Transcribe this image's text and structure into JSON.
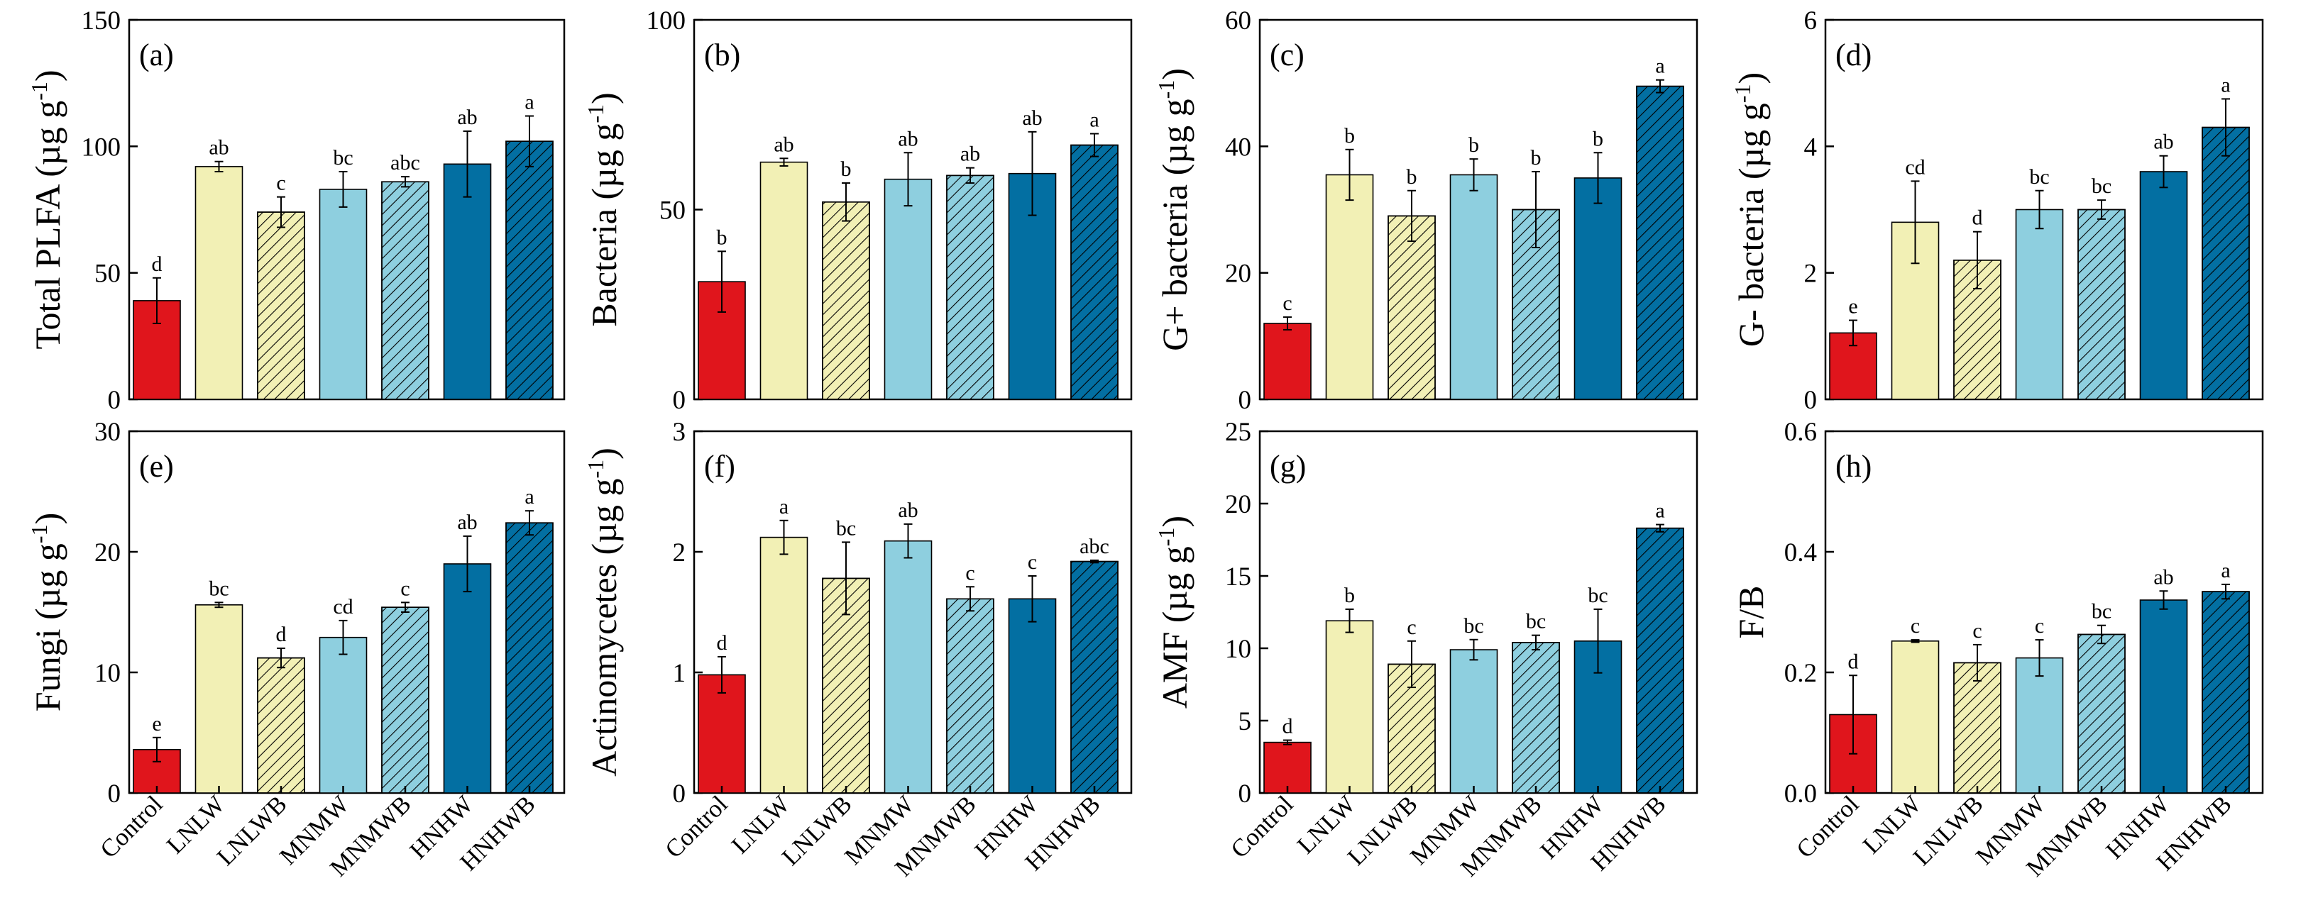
{
  "categories": [
    "Control",
    "LNLW",
    "LNLWB",
    "MNMW",
    "MNMWB",
    "HNHW",
    "HNHWB"
  ],
  "bar_colors": [
    "#e0151c",
    "#f2f0b5",
    "#f2f0b5",
    "#8ecfdf",
    "#8ecfdf",
    "#036fa2",
    "#036fa2"
  ],
  "hatched": [
    false,
    false,
    true,
    false,
    true,
    false,
    true
  ],
  "chart_data": [
    {
      "type": "bar",
      "panel": "(a)",
      "ylabel": "Total PLFA (µg g",
      "ylim": [
        0,
        150
      ],
      "yticks": [
        0,
        50,
        100,
        150
      ],
      "values": [
        39,
        92,
        74,
        83,
        86,
        93,
        102
      ],
      "errors": [
        9,
        2,
        6,
        7,
        2,
        13,
        10
      ],
      "letters": [
        "d",
        "ab",
        "c",
        "bc",
        "abc",
        "ab",
        "a"
      ]
    },
    {
      "type": "bar",
      "panel": "(b)",
      "ylabel": "Bacteria (µg g",
      "ylim": [
        0,
        100
      ],
      "yticks": [
        0,
        50,
        100
      ],
      "values": [
        31,
        62.5,
        52,
        58,
        59,
        59.5,
        67
      ],
      "errors": [
        8,
        1,
        5,
        7,
        2,
        11,
        3
      ],
      "letters": [
        "b",
        "ab",
        "b",
        "ab",
        "ab",
        "ab",
        "a"
      ]
    },
    {
      "type": "bar",
      "panel": "(c)",
      "ylabel": "G+ bacteria (µg g",
      "ylim": [
        0,
        60
      ],
      "yticks": [
        0,
        20,
        40,
        60
      ],
      "values": [
        12,
        35.5,
        29,
        35.5,
        30,
        35,
        49.5
      ],
      "errors": [
        1,
        4,
        4,
        2.5,
        6,
        4,
        1
      ],
      "letters": [
        "c",
        "b",
        "b",
        "b",
        "b",
        "b",
        "a"
      ]
    },
    {
      "type": "bar",
      "panel": "(d)",
      "ylabel": "G- bacteria (µg g",
      "ylim": [
        0,
        6
      ],
      "yticks": [
        0,
        2,
        4,
        6
      ],
      "values": [
        1.05,
        2.8,
        2.2,
        3.0,
        3.0,
        3.6,
        4.3
      ],
      "errors": [
        0.2,
        0.65,
        0.45,
        0.3,
        0.15,
        0.25,
        0.45
      ],
      "letters": [
        "e",
        "cd",
        "d",
        "bc",
        "bc",
        "ab",
        "a"
      ]
    },
    {
      "type": "bar",
      "panel": "(e)",
      "ylabel": "Fungi (µg g",
      "ylim": [
        0,
        30
      ],
      "yticks": [
        0,
        10,
        20,
        30
      ],
      "values": [
        3.6,
        15.6,
        11.2,
        12.9,
        15.4,
        19,
        22.4
      ],
      "errors": [
        1,
        0.2,
        0.8,
        1.4,
        0.4,
        2.3,
        1
      ],
      "letters": [
        "e",
        "bc",
        "d",
        "cd",
        "c",
        "ab",
        "a"
      ]
    },
    {
      "type": "bar",
      "panel": "(f)",
      "ylabel": "Actinomycetes (µg g",
      "ylim": [
        0,
        3
      ],
      "yticks": [
        0,
        1,
        2,
        3
      ],
      "values": [
        0.98,
        2.12,
        1.78,
        2.09,
        1.61,
        1.61,
        1.92
      ],
      "errors": [
        0.15,
        0.14,
        0.3,
        0.14,
        0.1,
        0.19,
        0.01
      ],
      "letters": [
        "d",
        "a",
        "bc",
        "ab",
        "c",
        "c",
        "abc"
      ]
    },
    {
      "type": "bar",
      "panel": "(g)",
      "ylabel": "AMF (µg g",
      "ylim": [
        0,
        25
      ],
      "yticks": [
        0,
        5,
        10,
        15,
        20,
        25
      ],
      "values": [
        3.5,
        11.9,
        8.9,
        9.9,
        10.4,
        10.5,
        18.3
      ],
      "errors": [
        0.15,
        0.8,
        1.6,
        0.7,
        0.5,
        2.2,
        0.25
      ],
      "letters": [
        "d",
        "b",
        "c",
        "bc",
        "bc",
        "bc",
        "a"
      ]
    },
    {
      "type": "bar",
      "panel": "(h)",
      "ylabel": "F/B",
      "ylim": [
        0,
        0.6
      ],
      "yticks": [
        "0.0",
        "0.2",
        "0.4",
        "0.6"
      ],
      "values": [
        0.13,
        0.252,
        0.216,
        0.224,
        0.263,
        0.32,
        0.334
      ],
      "errors": [
        0.065,
        0.002,
        0.03,
        0.03,
        0.015,
        0.015,
        0.012
      ],
      "letters": [
        "d",
        "c",
        "c",
        "c",
        "bc",
        "ab",
        "a"
      ]
    }
  ]
}
